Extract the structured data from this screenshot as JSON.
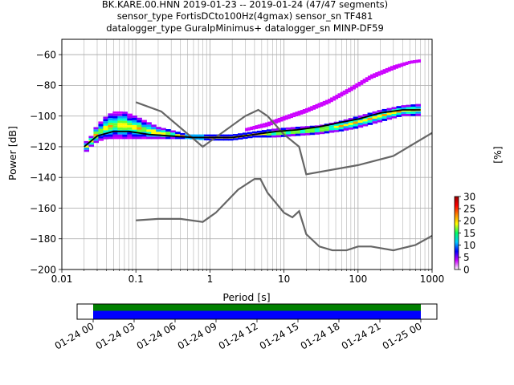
{
  "title": {
    "line1": "BK.KARE.00.HNN   2019-01-23 -- 2019-01-24  (47/47 segments)",
    "line2": "sensor_type FortisDCto100Hz(4gmax) sensor_sn TF481",
    "line3": "datalogger_type GuralpMinimus+ datalogger_sn MINP-DF59"
  },
  "colors": {
    "noise_model": "#666666",
    "mean_curve": "#000000",
    "timeline_upper": "#008000",
    "timeline_lower": "#0000ff",
    "grid": "#b0b0b0"
  },
  "chart_data": {
    "type": "heatmap",
    "xlabel": "Period [s]",
    "ylabel": "Power [dB]",
    "xscale": "log",
    "xlim": [
      0.01,
      1000
    ],
    "ylim": [
      -200,
      -50
    ],
    "xticks": [
      {
        "value": 0.01,
        "label": "0.01"
      },
      {
        "value": 0.1,
        "label": "0.1"
      },
      {
        "value": 1,
        "label": "1"
      },
      {
        "value": 10,
        "label": "10"
      },
      {
        "value": 100,
        "label": "100"
      },
      {
        "value": 1000,
        "label": "1000"
      }
    ],
    "yticks": [
      -200,
      -180,
      -160,
      -140,
      -120,
      -100,
      -80,
      -60
    ],
    "grid": true,
    "colorbar": {
      "label": "[%]",
      "range": [
        0,
        30
      ],
      "ticks": [
        0,
        5,
        10,
        15,
        20,
        25,
        30
      ],
      "colormap": [
        "#ffffff",
        "#cc00ff",
        "#0000ff",
        "#00ccff",
        "#00ff66",
        "#ffff00",
        "#ff8800",
        "#ff0000",
        "#990000"
      ]
    },
    "mean_curve": [
      [
        0.02,
        -120
      ],
      [
        0.03,
        -113
      ],
      [
        0.05,
        -110
      ],
      [
        0.08,
        -110
      ],
      [
        0.15,
        -112
      ],
      [
        0.3,
        -113
      ],
      [
        0.6,
        -114
      ],
      [
        1,
        -114
      ],
      [
        2,
        -114
      ],
      [
        4,
        -112
      ],
      [
        8,
        -110
      ],
      [
        15,
        -109
      ],
      [
        30,
        -107
      ],
      [
        60,
        -104
      ],
      [
        100,
        -102
      ],
      [
        200,
        -98
      ],
      [
        400,
        -96
      ],
      [
        700,
        -96
      ]
    ],
    "psd_bands": [
      [
        [
          0.02,
          -125,
          -118
        ],
        [
          0.025,
          -120,
          -113
        ],
        [
          0.03,
          -117,
          -106
        ],
        [
          0.04,
          -115,
          -100
        ],
        [
          0.05,
          -115,
          -97
        ],
        [
          0.07,
          -115,
          -97
        ],
        [
          0.1,
          -115,
          -100
        ],
        [
          0.15,
          -115,
          -104
        ],
        [
          0.2,
          -115,
          -107
        ],
        [
          0.3,
          -115,
          -109
        ],
        [
          0.5,
          -115,
          -112
        ],
        [
          1,
          -116,
          -112
        ],
        [
          2,
          -116,
          -112
        ],
        [
          4,
          -114,
          -110
        ],
        [
          8,
          -114,
          -108
        ],
        [
          15,
          -113,
          -107
        ],
        [
          30,
          -112,
          -106
        ],
        [
          60,
          -110,
          -103
        ],
        [
          100,
          -108,
          -100
        ],
        [
          200,
          -104,
          -96
        ],
        [
          400,
          -100,
          -93
        ],
        [
          700,
          -100,
          -92
        ]
      ],
      [
        [
          3,
          -110,
          -108
        ],
        [
          6,
          -107,
          -104
        ],
        [
          10,
          -103,
          -100
        ],
        [
          20,
          -98,
          -95
        ],
        [
          40,
          -92,
          -89
        ],
        [
          80,
          -84,
          -81
        ],
        [
          150,
          -76,
          -73
        ],
        [
          300,
          -70,
          -67
        ],
        [
          500,
          -66,
          -64
        ],
        [
          700,
          -65,
          -63
        ]
      ]
    ],
    "noise_models": [
      {
        "points": [
          [
            0.1,
            -91
          ],
          [
            0.22,
            -97
          ],
          [
            0.8,
            -120
          ],
          [
            3,
            -100
          ],
          [
            4.5,
            -96
          ],
          [
            6,
            -100
          ],
          [
            10,
            -112
          ],
          [
            16,
            -120
          ],
          [
            20,
            -138
          ],
          [
            100,
            -132
          ],
          [
            300,
            -126
          ],
          [
            1000,
            -111
          ]
        ]
      },
      {
        "points": [
          [
            0.1,
            -168
          ],
          [
            0.2,
            -167
          ],
          [
            0.4,
            -167
          ],
          [
            0.8,
            -169
          ],
          [
            1.2,
            -163
          ],
          [
            2.4,
            -148
          ],
          [
            4,
            -141
          ],
          [
            4.8,
            -141
          ],
          [
            6,
            -150
          ],
          [
            10,
            -163
          ],
          [
            13,
            -166
          ],
          [
            16,
            -162
          ],
          [
            20,
            -177
          ],
          [
            30,
            -185
          ],
          [
            45,
            -187.5
          ],
          [
            70,
            -187.5
          ],
          [
            100,
            -185
          ],
          [
            150,
            -185
          ],
          [
            300,
            -187.5
          ],
          [
            600,
            -184
          ],
          [
            1000,
            -178
          ]
        ]
      }
    ],
    "timeline": {
      "ticks": [
        "01-24 00",
        "01-24 03",
        "01-24 06",
        "01-24 09",
        "01-24 12",
        "01-24 15",
        "01-24 18",
        "01-24 21",
        "01-25 00"
      ],
      "coverage_start": "01-24 00",
      "coverage_end": "01-25 00"
    }
  }
}
